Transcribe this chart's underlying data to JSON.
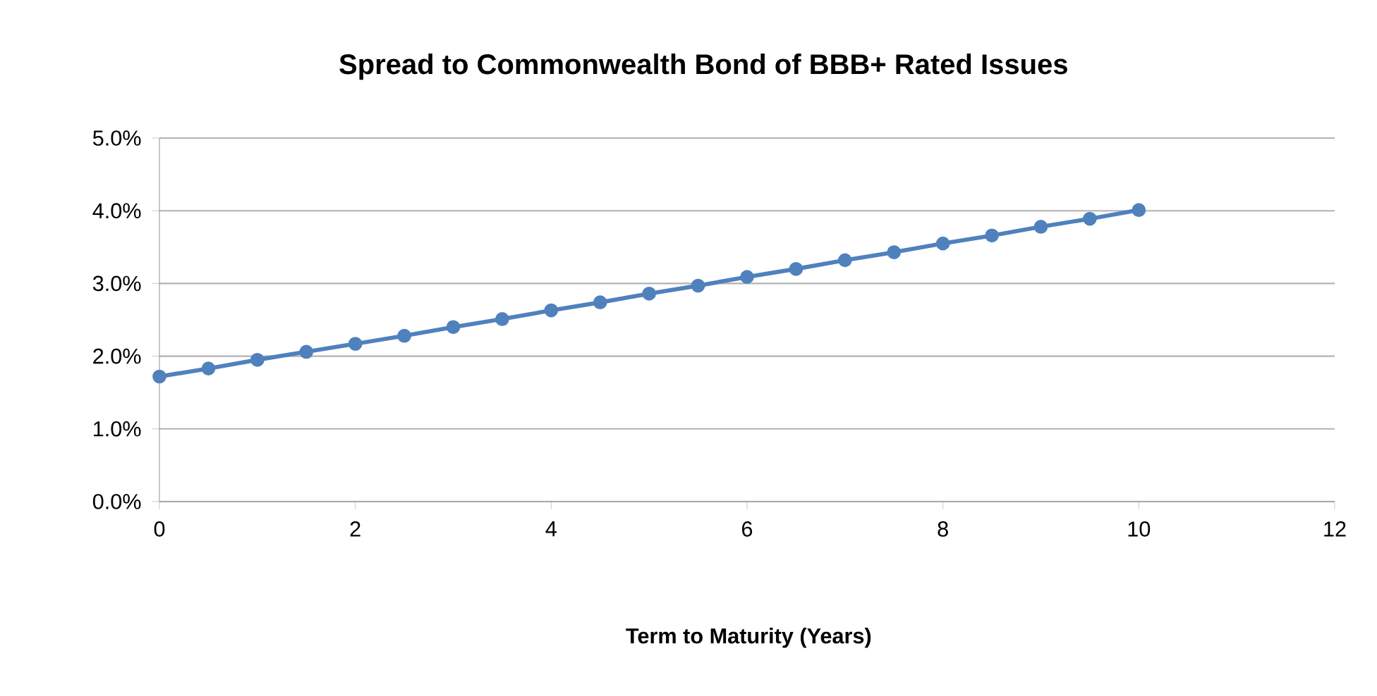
{
  "chart_data": {
    "type": "line",
    "title": "Spread to Commonwealth Bond of BBB+ Rated Issues",
    "xlabel": "Term to Maturity (Years)",
    "x": [
      0,
      0.5,
      1,
      1.5,
      2,
      2.5,
      3,
      3.5,
      4,
      4.5,
      5,
      5.5,
      6,
      6.5,
      7,
      7.5,
      8,
      8.5,
      9,
      9.5,
      10
    ],
    "series": [
      {
        "color": "#4f81bd",
        "values": [
          1.72,
          1.83,
          1.95,
          2.06,
          2.17,
          2.28,
          2.4,
          2.51,
          2.63,
          2.74,
          2.86,
          2.97,
          3.09,
          3.2,
          3.32,
          3.43,
          3.55,
          3.66,
          3.78,
          3.89,
          4.01
        ]
      }
    ],
    "xlim": [
      0,
      12
    ],
    "xticks": [
      0,
      2,
      4,
      6,
      8,
      10,
      12
    ],
    "ylim": [
      0,
      5
    ],
    "yticks": [
      {
        "value": 0,
        "label": "0.0%"
      },
      {
        "value": 1,
        "label": "1.0%"
      },
      {
        "value": 2,
        "label": "2.0%"
      },
      {
        "value": 3,
        "label": "3.0%"
      },
      {
        "value": 4,
        "label": "4.0%"
      },
      {
        "value": 5,
        "label": "5.0%"
      }
    ],
    "grid": "y",
    "marker": "circle",
    "line_style": "solid"
  }
}
